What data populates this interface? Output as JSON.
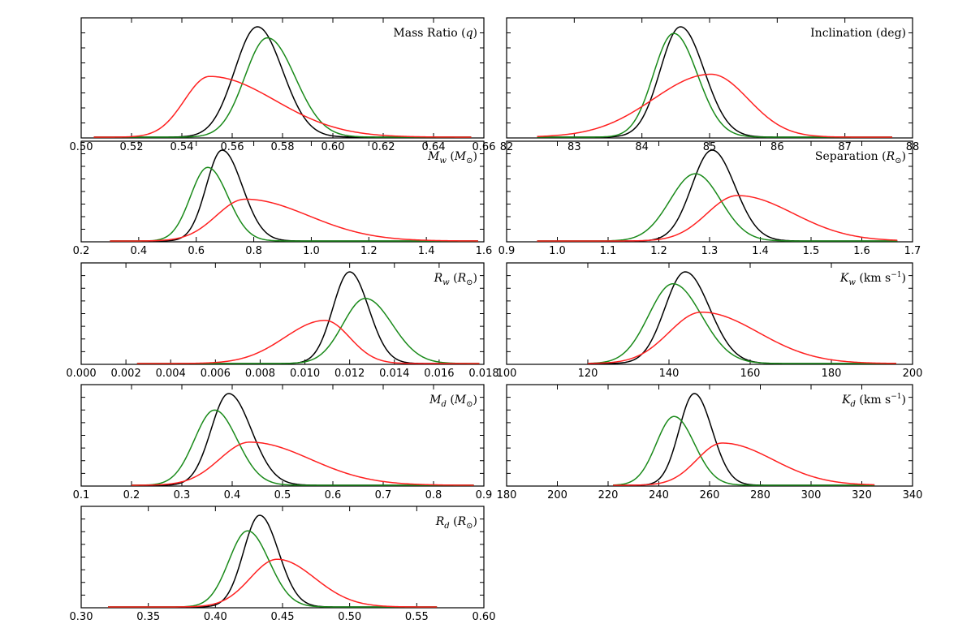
{
  "colors": {
    "black_curve": "#000000",
    "green_curve": "#1a8a1a",
    "red_curve": "#ff2020",
    "axes": "#000000",
    "background": "#ffffff"
  },
  "chart_data": [
    {
      "type": "line",
      "title": "Mass Ratio (q)",
      "label_parts": [
        {
          "t": "Mass Ratio ("
        },
        {
          "t": "q",
          "i": true
        },
        {
          "t": ")"
        }
      ],
      "xlim": [
        0.5,
        0.66
      ],
      "ticks": [
        0.5,
        0.52,
        0.54,
        0.56,
        0.58,
        0.6,
        0.62,
        0.64,
        0.66
      ],
      "tick_labels": [
        "0.50",
        "0.52",
        "0.54",
        "0.56",
        "0.58",
        "0.60",
        "0.62",
        "0.64",
        "0.66"
      ],
      "range": [
        0.505,
        0.655
      ],
      "series": [
        {
          "name": "black",
          "color": "#000000",
          "mu": 0.57,
          "sl": 0.009,
          "sr": 0.01,
          "peak": 1.0
        },
        {
          "name": "green",
          "color": "#1a8a1a",
          "mu": 0.574,
          "sl": 0.009,
          "sr": 0.011,
          "peak": 0.9
        },
        {
          "name": "red",
          "color": "#ff2020",
          "mu": 0.551,
          "sl": 0.01,
          "sr": 0.026,
          "peak": 0.55
        }
      ]
    },
    {
      "type": "line",
      "title": "Inclination (deg)",
      "label_parts": [
        {
          "t": "Inclination (deg)"
        }
      ],
      "xlim": [
        82,
        88
      ],
      "ticks": [
        82,
        83,
        84,
        85,
        86,
        87,
        88
      ],
      "tick_labels": [
        "82",
        "83",
        "84",
        "85",
        "86",
        "87",
        "88"
      ],
      "range": [
        82.45,
        87.7
      ],
      "series": [
        {
          "name": "black",
          "color": "#000000",
          "mu": 84.57,
          "sl": 0.3,
          "sr": 0.35,
          "peak": 1.0
        },
        {
          "name": "green",
          "color": "#1a8a1a",
          "mu": 84.47,
          "sl": 0.3,
          "sr": 0.35,
          "peak": 0.94
        },
        {
          "name": "red",
          "color": "#ff2020",
          "mu": 85.02,
          "sl": 0.85,
          "sr": 0.55,
          "peak": 0.57
        }
      ]
    },
    {
      "type": "line",
      "title": "M_w (M_sun)",
      "label_parts": [
        {
          "t": "M",
          "i": true
        },
        {
          "t": "w",
          "i": true,
          "sub": true
        },
        {
          "t": " ("
        },
        {
          "t": "M",
          "i": true
        },
        {
          "t": "⊙",
          "sub": true
        },
        {
          "t": ")"
        }
      ],
      "xlim": [
        0.2,
        1.6
      ],
      "ticks": [
        0.2,
        0.4,
        0.6,
        0.8,
        1.0,
        1.2,
        1.4,
        1.6
      ],
      "tick_labels": [
        "0.2",
        "0.4",
        "0.6",
        "0.8",
        "1.0",
        "1.2",
        "1.4",
        "1.6"
      ],
      "range": [
        0.3,
        1.58
      ],
      "series": [
        {
          "name": "black",
          "color": "#000000",
          "mu": 0.69,
          "sl": 0.055,
          "sr": 0.07,
          "peak": 1.0
        },
        {
          "name": "green",
          "color": "#1a8a1a",
          "mu": 0.64,
          "sl": 0.06,
          "sr": 0.07,
          "peak": 0.81
        },
        {
          "name": "red",
          "color": "#ff2020",
          "mu": 0.77,
          "sl": 0.1,
          "sr": 0.22,
          "peak": 0.46
        }
      ]
    },
    {
      "type": "line",
      "title": "Separation (R_sun)",
      "label_parts": [
        {
          "t": "Separation ("
        },
        {
          "t": "R",
          "i": true
        },
        {
          "t": "⊙",
          "sub": true
        },
        {
          "t": ")"
        }
      ],
      "xlim": [
        0.9,
        1.7
      ],
      "ticks": [
        0.9,
        1.0,
        1.1,
        1.2,
        1.3,
        1.4,
        1.5,
        1.6,
        1.7
      ],
      "tick_labels": [
        "0.9",
        "1.0",
        "1.1",
        "1.2",
        "1.3",
        "1.4",
        "1.5",
        "1.6",
        "1.7"
      ],
      "range": [
        0.96,
        1.67
      ],
      "series": [
        {
          "name": "black",
          "color": "#000000",
          "mu": 1.305,
          "sl": 0.04,
          "sr": 0.045,
          "peak": 1.0
        },
        {
          "name": "green",
          "color": "#1a8a1a",
          "mu": 1.272,
          "sl": 0.05,
          "sr": 0.05,
          "peak": 0.74
        },
        {
          "name": "red",
          "color": "#ff2020",
          "mu": 1.355,
          "sl": 0.06,
          "sr": 0.11,
          "peak": 0.5
        }
      ]
    },
    {
      "type": "line",
      "title": "R_w (R_sun)",
      "label_parts": [
        {
          "t": "R",
          "i": true
        },
        {
          "t": "w",
          "i": true,
          "sub": true
        },
        {
          "t": " ("
        },
        {
          "t": "R",
          "i": true
        },
        {
          "t": "⊙",
          "sub": true
        },
        {
          "t": ")"
        }
      ],
      "xlim": [
        0.0,
        0.018
      ],
      "ticks": [
        0.0,
        0.002,
        0.004,
        0.006,
        0.008,
        0.01,
        0.012,
        0.014,
        0.016,
        0.018
      ],
      "tick_labels": [
        "0.000",
        "0.002",
        "0.004",
        "0.006",
        "0.008",
        "0.010",
        "0.012",
        "0.014",
        "0.016",
        "0.018"
      ],
      "range": [
        0.0025,
        0.0178
      ],
      "series": [
        {
          "name": "black",
          "color": "#000000",
          "mu": 0.012,
          "sl": 0.00075,
          "sr": 0.00085,
          "peak": 1.0
        },
        {
          "name": "green",
          "color": "#1a8a1a",
          "mu": 0.0127,
          "sl": 0.001,
          "sr": 0.0012,
          "peak": 0.71
        },
        {
          "name": "red",
          "color": "#ff2020",
          "mu": 0.0109,
          "sl": 0.0018,
          "sr": 0.0011,
          "peak": 0.47
        }
      ]
    },
    {
      "type": "line",
      "title": "K_w (km s^-1)",
      "label_parts": [
        {
          "t": "K",
          "i": true
        },
        {
          "t": "w",
          "i": true,
          "sub": true
        },
        {
          "t": " (km s"
        },
        {
          "t": "−1",
          "sup": true
        },
        {
          "t": ")"
        }
      ],
      "xlim": [
        100,
        200
      ],
      "ticks": [
        100,
        120,
        140,
        160,
        180,
        200
      ],
      "tick_labels": [
        "100",
        "120",
        "140",
        "160",
        "180",
        "200"
      ],
      "range": [
        120,
        196
      ],
      "series": [
        {
          "name": "black",
          "color": "#000000",
          "mu": 144,
          "sl": 5.0,
          "sr": 6.0,
          "peak": 1.0
        },
        {
          "name": "green",
          "color": "#1a8a1a",
          "mu": 141,
          "sl": 6.0,
          "sr": 7.0,
          "peak": 0.87
        },
        {
          "name": "red",
          "color": "#ff2020",
          "mu": 148,
          "sl": 8.0,
          "sr": 14.0,
          "peak": 0.56
        }
      ]
    },
    {
      "type": "line",
      "title": "M_d (M_sun)",
      "label_parts": [
        {
          "t": "M",
          "i": true
        },
        {
          "t": "d",
          "i": true,
          "sub": true
        },
        {
          "t": " ("
        },
        {
          "t": "M",
          "i": true
        },
        {
          "t": "⊙",
          "sub": true
        },
        {
          "t": ")"
        }
      ],
      "xlim": [
        0.1,
        0.9
      ],
      "ticks": [
        0.1,
        0.2,
        0.3,
        0.4,
        0.5,
        0.6,
        0.7,
        0.8,
        0.9
      ],
      "tick_labels": [
        "0.1",
        "0.2",
        "0.3",
        "0.4",
        "0.5",
        "0.6",
        "0.7",
        "0.8",
        "0.9"
      ],
      "range": [
        0.2,
        0.88
      ],
      "series": [
        {
          "name": "black",
          "color": "#000000",
          "mu": 0.393,
          "sl": 0.035,
          "sr": 0.045,
          "peak": 1.0
        },
        {
          "name": "green",
          "color": "#1a8a1a",
          "mu": 0.365,
          "sl": 0.04,
          "sr": 0.045,
          "peak": 0.82
        },
        {
          "name": "red",
          "color": "#ff2020",
          "mu": 0.435,
          "sl": 0.06,
          "sr": 0.12,
          "peak": 0.47
        }
      ]
    },
    {
      "type": "line",
      "title": "K_d (km s^-1)",
      "label_parts": [
        {
          "t": "K",
          "i": true
        },
        {
          "t": "d",
          "i": true,
          "sub": true
        },
        {
          "t": " (km s"
        },
        {
          "t": "−1",
          "sup": true
        },
        {
          "t": ")"
        }
      ],
      "xlim": [
        180,
        340
      ],
      "ticks": [
        180,
        200,
        220,
        240,
        260,
        280,
        300,
        320,
        340
      ],
      "tick_labels": [
        "180",
        "200",
        "220",
        "240",
        "260",
        "280",
        "300",
        "320",
        "340"
      ],
      "range": [
        222,
        325
      ],
      "series": [
        {
          "name": "black",
          "color": "#000000",
          "mu": 254,
          "sl": 6.0,
          "sr": 7.0,
          "peak": 1.0
        },
        {
          "name": "green",
          "color": "#1a8a1a",
          "mu": 246,
          "sl": 7.0,
          "sr": 8.0,
          "peak": 0.75
        },
        {
          "name": "red",
          "color": "#ff2020",
          "mu": 265,
          "sl": 10.0,
          "sr": 20.0,
          "peak": 0.46
        }
      ]
    },
    {
      "type": "line",
      "title": "R_d (R_sun)",
      "label_parts": [
        {
          "t": "R",
          "i": true
        },
        {
          "t": "d",
          "i": true,
          "sub": true
        },
        {
          "t": " ("
        },
        {
          "t": "R",
          "i": true
        },
        {
          "t": "⊙",
          "sub": true
        },
        {
          "t": ")"
        }
      ],
      "xlim": [
        0.3,
        0.6
      ],
      "ticks": [
        0.3,
        0.35,
        0.4,
        0.45,
        0.5,
        0.55,
        0.6
      ],
      "tick_labels": [
        "0.30",
        "0.35",
        "0.40",
        "0.45",
        "0.50",
        "0.55",
        "0.60"
      ],
      "range": [
        0.32,
        0.565
      ],
      "series": [
        {
          "name": "black",
          "color": "#000000",
          "mu": 0.433,
          "sl": 0.012,
          "sr": 0.014,
          "peak": 1.0
        },
        {
          "name": "green",
          "color": "#1a8a1a",
          "mu": 0.424,
          "sl": 0.014,
          "sr": 0.016,
          "peak": 0.83
        },
        {
          "name": "red",
          "color": "#ff2020",
          "mu": 0.446,
          "sl": 0.02,
          "sr": 0.028,
          "peak": 0.52
        }
      ]
    }
  ]
}
